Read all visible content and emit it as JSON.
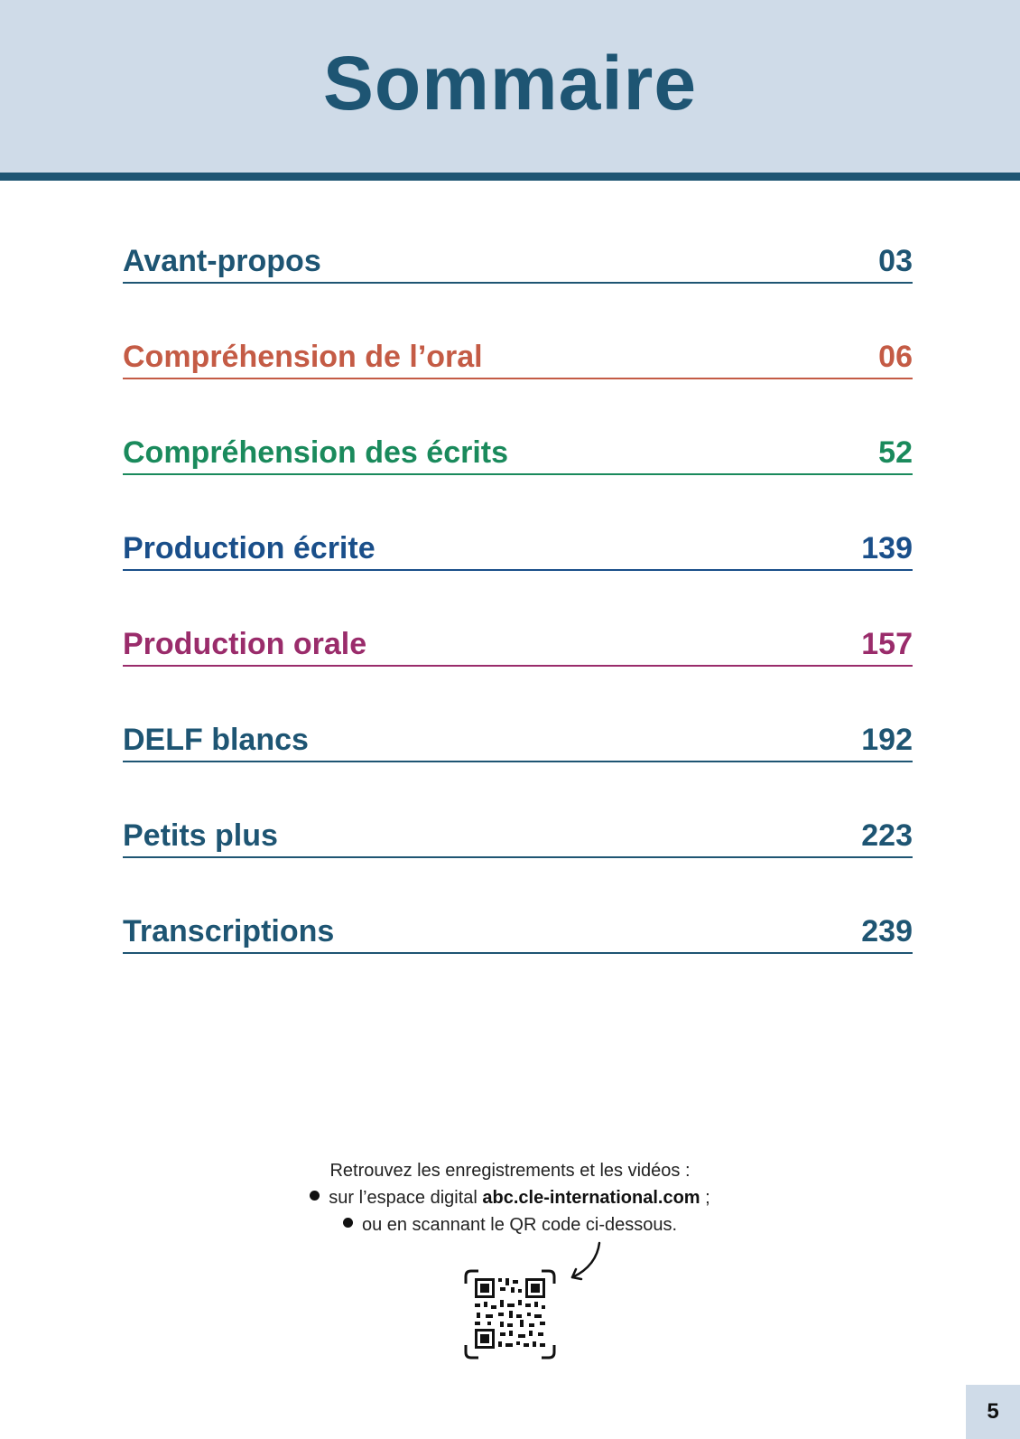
{
  "header": {
    "title": "Sommaire"
  },
  "toc": [
    {
      "label": "Avant-propos",
      "page": "03",
      "color": "#1e5573"
    },
    {
      "label": "Compréhension de l’oral",
      "page": "06",
      "color": "#c45b45"
    },
    {
      "label": "Compréhension des écrits",
      "page": "52",
      "color": "#1a8a5c"
    },
    {
      "label": "Production écrite",
      "page": "139",
      "color": "#1a4f8a"
    },
    {
      "label": "Production orale",
      "page": "157",
      "color": "#9a2c6b"
    },
    {
      "label": "DELF blancs",
      "page": "192",
      "color": "#1e5573"
    },
    {
      "label": "Petits plus",
      "page": "223",
      "color": "#1e5573"
    },
    {
      "label": "Transcriptions",
      "page": "239",
      "color": "#1e5573"
    }
  ],
  "footer": {
    "intro": "Retrouvez les enregistrements et les vidéos :",
    "bullet1_prefix": "sur l’espace digital ",
    "bullet1_url": "abc.cle-international.com",
    "bullet1_suffix": " ;",
    "bullet2": "ou en scannant le QR code ci-dessous."
  },
  "page_number": "5",
  "icons": {
    "qr": "qr-code-icon",
    "arrow": "curved-arrow-icon"
  }
}
